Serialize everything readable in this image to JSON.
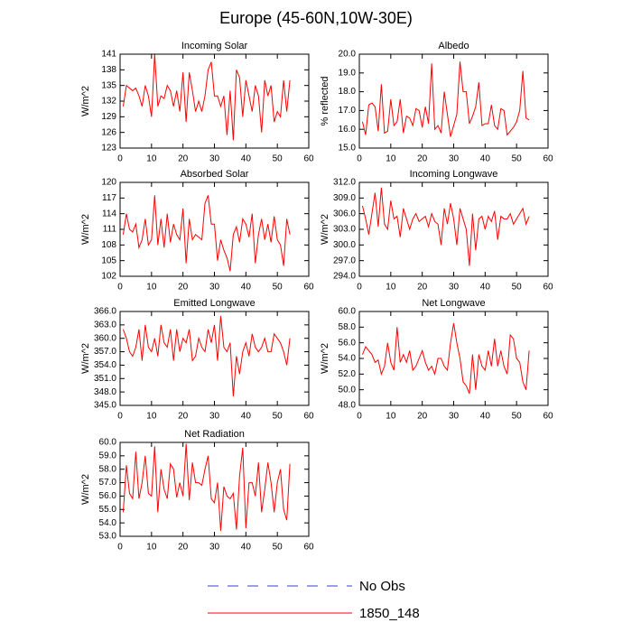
{
  "title": "Europe (45-60N,10W-30E)",
  "legend": [
    {
      "name": "No Obs",
      "color": "#3c3ccc",
      "dash": "dashed"
    },
    {
      "name": "1850_148",
      "color": "#ff0000",
      "dash": "solid"
    }
  ],
  "chart_data": [
    {
      "type": "line",
      "title": "Incoming Solar",
      "ylabel": "W/m^2",
      "color": "#ff0000",
      "x": [
        1,
        2,
        3,
        4,
        5,
        6,
        7,
        8,
        9,
        10,
        11,
        12,
        13,
        14,
        15,
        16,
        17,
        18,
        19,
        20,
        21,
        22,
        23,
        24,
        25,
        26,
        27,
        28,
        29,
        30,
        31,
        32,
        33,
        34,
        35,
        36,
        37,
        38,
        39,
        40,
        41,
        42,
        43,
        44,
        45,
        46,
        47,
        48,
        49,
        50,
        51,
        52,
        53,
        54
      ],
      "values": [
        131,
        135,
        134.5,
        134,
        134.5,
        133,
        131,
        135,
        133,
        129,
        141,
        131,
        133,
        132.5,
        135,
        134,
        131,
        134,
        130,
        137.5,
        128,
        137.5,
        134,
        130,
        132,
        130,
        133,
        138,
        139.5,
        133,
        133,
        131,
        133,
        125.5,
        134,
        124.5,
        138,
        136.5,
        129,
        136,
        133,
        130,
        135,
        133,
        126,
        136,
        133,
        135,
        128,
        130,
        129,
        136,
        130,
        136
      ],
      "xlim": [
        0,
        60
      ],
      "xticks": [
        0,
        10,
        20,
        30,
        40,
        50,
        60
      ],
      "ylim": [
        123,
        141
      ],
      "yticks": [
        123,
        126,
        129,
        132,
        135,
        138,
        141
      ]
    },
    {
      "type": "line",
      "title": "Albedo",
      "ylabel": "% reflected",
      "color": "#ff0000",
      "x": [
        1,
        2,
        3,
        4,
        5,
        6,
        7,
        8,
        9,
        10,
        11,
        12,
        13,
        14,
        15,
        16,
        17,
        18,
        19,
        20,
        21,
        22,
        23,
        24,
        25,
        26,
        27,
        28,
        29,
        30,
        31,
        32,
        33,
        34,
        35,
        36,
        37,
        38,
        39,
        40,
        41,
        42,
        43,
        44,
        45,
        46,
        47,
        48,
        49,
        50,
        51,
        52,
        53,
        54
      ],
      "values": [
        16.4,
        15.7,
        17.3,
        17.4,
        17.2,
        15.9,
        18.4,
        15.8,
        15.9,
        17.6,
        16.2,
        16.4,
        17.6,
        15.8,
        16.7,
        16.6,
        16.2,
        17.1,
        17.0,
        16.1,
        17.2,
        16.3,
        19.5,
        16.0,
        16.2,
        15.8,
        18.0,
        16.8,
        15.6,
        16.2,
        16.8,
        19.6,
        18.0,
        18.0,
        16.3,
        16.7,
        17.2,
        18.5,
        16.2,
        16.3,
        16.3,
        17.3,
        16.2,
        16.0,
        17.1,
        17.0,
        15.7,
        15.9,
        16.1,
        16.4,
        17.0,
        19.1,
        16.6,
        16.5
      ],
      "xlim": [
        0,
        60
      ],
      "xticks": [
        0,
        10,
        20,
        30,
        40,
        50,
        60
      ],
      "ylim": [
        15,
        20
      ],
      "yticks": [
        {
          "value": 15,
          "label": "15.0"
        },
        {
          "value": 16,
          "label": "16.0"
        },
        {
          "value": 17,
          "label": "17.0"
        },
        {
          "value": 18,
          "label": "18.0"
        },
        {
          "value": 19,
          "label": "19.0"
        },
        {
          "value": 20,
          "label": "20.0"
        }
      ]
    },
    {
      "type": "line",
      "title": "Absorbed Solar",
      "ylabel": "W/m^2",
      "color": "#ff0000",
      "x": [
        1,
        2,
        3,
        4,
        5,
        6,
        7,
        8,
        9,
        10,
        11,
        12,
        13,
        14,
        15,
        16,
        17,
        18,
        19,
        20,
        21,
        22,
        23,
        24,
        25,
        26,
        27,
        28,
        29,
        30,
        31,
        32,
        33,
        34,
        35,
        36,
        37,
        38,
        39,
        40,
        41,
        42,
        43,
        44,
        45,
        46,
        47,
        48,
        49,
        50,
        51,
        52,
        53,
        54
      ],
      "values": [
        110,
        114,
        111,
        110.5,
        112,
        107.5,
        109,
        113,
        108,
        109,
        117.5,
        108,
        113,
        107.5,
        114,
        108.5,
        112,
        110,
        109,
        115,
        104.5,
        113,
        109,
        110,
        109.5,
        109,
        116,
        117.5,
        112,
        112,
        105,
        109,
        107,
        105.5,
        103,
        110,
        111.5,
        108.5,
        113,
        112,
        109.5,
        114,
        104.5,
        110,
        113,
        109,
        112,
        108.5,
        113.5,
        109,
        108,
        104,
        113,
        110
      ],
      "xlim": [
        0,
        60
      ],
      "xticks": [
        0,
        10,
        20,
        30,
        40,
        50,
        60
      ],
      "ylim": [
        102,
        120
      ],
      "yticks": [
        102,
        105,
        108,
        111,
        114,
        117,
        120
      ]
    },
    {
      "type": "line",
      "title": "Incoming Longwave",
      "ylabel": "W/m^2",
      "color": "#ff0000",
      "x": [
        1,
        2,
        3,
        4,
        5,
        6,
        7,
        8,
        9,
        10,
        11,
        12,
        13,
        14,
        15,
        16,
        17,
        18,
        19,
        20,
        21,
        22,
        23,
        24,
        25,
        26,
        27,
        28,
        29,
        30,
        31,
        32,
        33,
        34,
        35,
        36,
        37,
        38,
        39,
        40,
        41,
        42,
        43,
        44,
        45,
        46,
        47,
        48,
        49,
        50,
        51,
        52,
        53,
        54
      ],
      "values": [
        307.5,
        305,
        302,
        306,
        310,
        303.5,
        311,
        304,
        303,
        308.5,
        305,
        305.5,
        301.5,
        307,
        305,
        303,
        305,
        306,
        304.5,
        305,
        305.5,
        303.5,
        306,
        304.5,
        304,
        300,
        307,
        304,
        308,
        305,
        300,
        307,
        305,
        303,
        296,
        306,
        299,
        305,
        305.5,
        303,
        305.5,
        304.5,
        306.5,
        301,
        305.5,
        305,
        305,
        306,
        304,
        305,
        306,
        307,
        304,
        305.5
      ],
      "xlim": [
        0,
        60
      ],
      "xticks": [
        0,
        10,
        20,
        30,
        40,
        50,
        60
      ],
      "ylim": [
        294,
        312
      ],
      "yticks": [
        {
          "value": 294,
          "label": "294.0"
        },
        {
          "value": 297,
          "label": "297.0"
        },
        {
          "value": 300,
          "label": "300.0"
        },
        {
          "value": 303,
          "label": "303.0"
        },
        {
          "value": 306,
          "label": "306.0"
        },
        {
          "value": 309,
          "label": "309.0"
        },
        {
          "value": 312,
          "label": "312.0"
        }
      ]
    },
    {
      "type": "line",
      "title": "Emitted Longwave",
      "ylabel": "W/m^2",
      "color": "#ff0000",
      "x": [
        1,
        2,
        3,
        4,
        5,
        6,
        7,
        8,
        9,
        10,
        11,
        12,
        13,
        14,
        15,
        16,
        17,
        18,
        19,
        20,
        21,
        22,
        23,
        24,
        25,
        26,
        27,
        28,
        29,
        30,
        31,
        32,
        33,
        34,
        35,
        36,
        37,
        38,
        39,
        40,
        41,
        42,
        43,
        44,
        45,
        46,
        47,
        48,
        49,
        50,
        51,
        52,
        53,
        54
      ],
      "values": [
        362,
        360,
        357,
        356,
        358,
        362,
        355,
        363,
        358,
        357,
        360,
        356,
        363,
        359,
        358,
        362,
        355,
        362,
        357,
        360,
        359,
        362,
        355,
        356,
        360,
        358,
        357,
        362,
        359,
        363,
        355,
        365,
        358,
        357,
        359,
        347,
        356,
        352,
        357,
        359,
        356,
        361,
        358,
        357,
        358,
        360,
        357,
        357,
        361,
        360,
        359,
        357,
        354,
        360
      ],
      "xlim": [
        0,
        60
      ],
      "xticks": [
        0,
        10,
        20,
        30,
        40,
        50,
        60
      ],
      "ylim": [
        345,
        366
      ],
      "yticks": [
        {
          "value": 345,
          "label": "345.0"
        },
        {
          "value": 348,
          "label": "348.0"
        },
        {
          "value": 351,
          "label": "351.0"
        },
        {
          "value": 354,
          "label": "354.0"
        },
        {
          "value": 357,
          "label": "357.0"
        },
        {
          "value": 360,
          "label": "360.0"
        },
        {
          "value": 363,
          "label": "363.0"
        },
        {
          "value": 366,
          "label": "366.0"
        }
      ]
    },
    {
      "type": "line",
      "title": "Net Longwave",
      "ylabel": "W/m^2",
      "color": "#ff0000",
      "x": [
        1,
        2,
        3,
        4,
        5,
        6,
        7,
        8,
        9,
        10,
        11,
        12,
        13,
        14,
        15,
        16,
        17,
        18,
        19,
        20,
        21,
        22,
        23,
        24,
        25,
        26,
        27,
        28,
        29,
        30,
        31,
        32,
        33,
        34,
        35,
        36,
        37,
        38,
        39,
        40,
        41,
        42,
        43,
        44,
        45,
        46,
        47,
        48,
        49,
        50,
        51,
        52,
        53,
        54
      ],
      "values": [
        54.5,
        55.5,
        55,
        54.5,
        53.5,
        53.8,
        52,
        53,
        56,
        53.5,
        52.5,
        58,
        53.5,
        54.5,
        53.5,
        55,
        52.5,
        53,
        54,
        55,
        53.5,
        52.5,
        53,
        52,
        54,
        54,
        53,
        52.5,
        56,
        58.5,
        56,
        54,
        51,
        50.5,
        49.5,
        54.5,
        50,
        54.5,
        53,
        52.5,
        55,
        53,
        56.5,
        53,
        55,
        53,
        52,
        57,
        56.5,
        54,
        53.5,
        51,
        50,
        55
      ],
      "xlim": [
        0,
        60
      ],
      "xticks": [
        0,
        10,
        20,
        30,
        40,
        50,
        60
      ],
      "ylim": [
        48,
        60
      ],
      "yticks": [
        {
          "value": 48,
          "label": "48.0"
        },
        {
          "value": 50,
          "label": "50.0"
        },
        {
          "value": 52,
          "label": "52.0"
        },
        {
          "value": 54,
          "label": "54.0"
        },
        {
          "value": 56,
          "label": "56.0"
        },
        {
          "value": 58,
          "label": "58.0"
        },
        {
          "value": 60,
          "label": "60.0"
        }
      ]
    },
    {
      "type": "line",
      "title": "Net Radiation",
      "ylabel": "W/m^2",
      "color": "#ff0000",
      "x": [
        1,
        2,
        3,
        4,
        5,
        6,
        7,
        8,
        9,
        10,
        11,
        12,
        13,
        14,
        15,
        16,
        17,
        18,
        19,
        20,
        21,
        22,
        23,
        24,
        25,
        26,
        27,
        28,
        29,
        30,
        31,
        32,
        33,
        34,
        35,
        36,
        37,
        38,
        39,
        40,
        41,
        42,
        43,
        44,
        45,
        46,
        47,
        48,
        49,
        50,
        51,
        52,
        53,
        54
      ],
      "values": [
        54.8,
        58.3,
        56.2,
        55.8,
        59.3,
        55.8,
        57,
        59,
        56.2,
        56,
        59.7,
        54.8,
        58,
        56.5,
        55.8,
        58.4,
        58,
        55.9,
        57,
        56,
        59.9,
        55.7,
        58.5,
        57,
        57,
        56.8,
        58,
        59,
        55.8,
        55.5,
        57,
        53.4,
        56.7,
        56,
        55.8,
        56.2,
        53.5,
        57.5,
        59.6,
        53.6,
        57,
        57,
        56,
        58.5,
        54.8,
        56.5,
        58.5,
        57,
        54.8,
        57,
        58,
        55,
        54.2,
        58.4
      ],
      "xlim": [
        0,
        60
      ],
      "xticks": [
        0,
        10,
        20,
        30,
        40,
        50,
        60
      ],
      "ylim": [
        53,
        60
      ],
      "yticks": [
        {
          "value": 53,
          "label": "53.0"
        },
        {
          "value": 54,
          "label": "54.0"
        },
        {
          "value": 55,
          "label": "55.0"
        },
        {
          "value": 56,
          "label": "56.0"
        },
        {
          "value": 57,
          "label": "57.0"
        },
        {
          "value": 58,
          "label": "58.0"
        },
        {
          "value": 59,
          "label": "59.0"
        },
        {
          "value": 60,
          "label": "60.0"
        }
      ]
    }
  ]
}
